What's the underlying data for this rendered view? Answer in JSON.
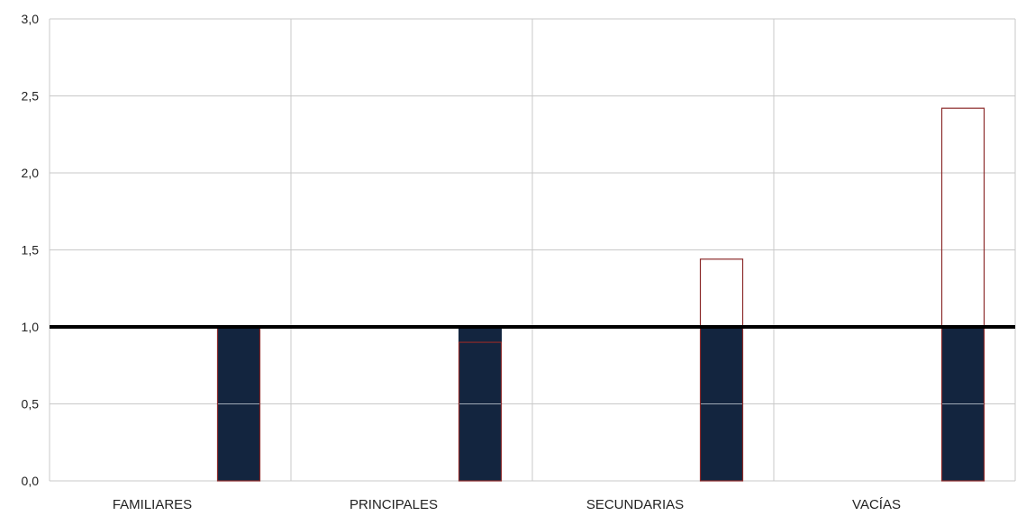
{
  "chart_data": {
    "type": "bar",
    "categories": [
      "FAMILIARES",
      "PRINCIPALES",
      "SECUNDARIAS",
      "VACÍAS"
    ],
    "series": [
      {
        "values": [
          1.0,
          1.0,
          1.0,
          1.0
        ],
        "color": "#13253f"
      },
      {
        "values": [
          1.0,
          0.9,
          1.44,
          2.42
        ],
        "color": "#8b2a2a"
      }
    ],
    "reference_line": 1.0,
    "ylim": [
      0,
      3
    ],
    "yticks": [
      "0,0",
      "0,5",
      "1,0",
      "1,5",
      "2,0",
      "2,5",
      "3,0"
    ],
    "grid": true,
    "legend": "none"
  }
}
